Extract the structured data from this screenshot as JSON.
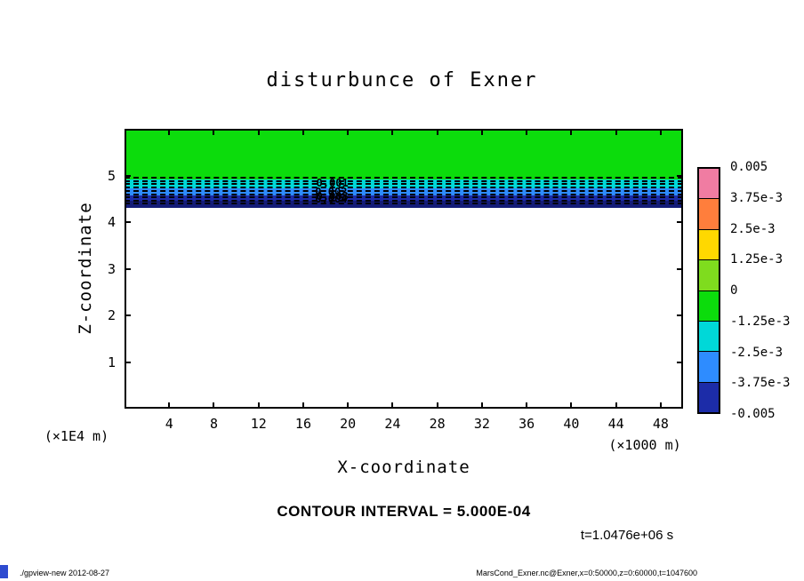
{
  "title": "disturbunce of Exner",
  "axes": {
    "x_label": "X-coordinate",
    "x_unit": "(×1000 m)",
    "y_label": "Z-coordinate",
    "y_unit": "(×1E4 m)",
    "x_ticks": [
      4,
      8,
      12,
      16,
      20,
      24,
      28,
      32,
      36,
      40,
      44,
      48
    ],
    "y_ticks": [
      1,
      2,
      3,
      4,
      5
    ]
  },
  "colorbar": {
    "labels": [
      "0.005",
      "3.75e-3",
      "2.5e-3",
      "1.25e-3",
      "0",
      "-1.25e-3",
      "-2.5e-3",
      "-3.75e-3",
      "-0.005"
    ],
    "segment_colors": [
      "#F07CA2",
      "#FF7E3C",
      "#FFD800",
      "#7FDC1E",
      "#0CDC0C",
      "#00D8D8",
      "#2E8CFF",
      "#1C2CA8"
    ]
  },
  "annotations": {
    "contour_interval": "CONTOUR INTERVAL = 5.000E-04",
    "time": "t=1.0476e+06 s",
    "contour_labels": [
      {
        "text": "0.001",
        "x": 18.6,
        "z": 4.83
      },
      {
        "text": "0.002",
        "x": 18.5,
        "z": 4.65
      },
      {
        "text": "0.003",
        "x": 18.6,
        "z": 4.56
      },
      {
        "text": "0.004",
        "x": 18.5,
        "z": 4.49
      }
    ]
  },
  "footer": {
    "left": "./gpview-new  2012-08-27",
    "right": "MarsCond_Exner.nc@Exner,x=0:50000,z=0:60000,t=1047600"
  },
  "chart_data": {
    "type": "heatmap",
    "title": "disturbunce of Exner",
    "xlabel": "X-coordinate (×1000 m)",
    "ylabel": "Z-coordinate (×1E4 m)",
    "x_range": [
      0,
      50
    ],
    "z_range": [
      0,
      6
    ],
    "grid": false,
    "legend_position": "right-colorbar",
    "contour_interval": 0.0005,
    "time_s": 1047600,
    "levels": [
      0.005,
      0.00375,
      0.0025,
      0.00125,
      0,
      -0.00125,
      -0.0025,
      -0.00375,
      -0.005
    ],
    "bands": [
      {
        "z_top": 6.0,
        "z_bottom": 4.92,
        "value_range": "0 to -1.25e-3",
        "color": "#0CDC0C"
      },
      {
        "z_top": 4.92,
        "z_bottom": 4.72,
        "value_range": "-1.25e-3 to -2.5e-3",
        "color": "#00D8D8"
      },
      {
        "z_top": 4.72,
        "z_bottom": 4.57,
        "value_range": "-2.5e-3 to -3.75e-3",
        "color": "#2E8CFF"
      },
      {
        "z_top": 4.57,
        "z_bottom": 4.45,
        "value_range": "-3.75e-3 to -0.005",
        "color": "#1C2CA8"
      },
      {
        "z_top": 4.45,
        "z_bottom": 4.31,
        "value_range": "below -0.005",
        "color": "#141C78"
      },
      {
        "z_top": 4.31,
        "z_bottom": 0.0,
        "value_range": "undefined (blank)",
        "color": "#FFFFFF"
      }
    ],
    "dashed_contours_z": [
      4.95,
      4.88,
      4.81,
      4.74,
      4.67,
      4.6,
      4.53,
      4.46,
      4.4
    ]
  }
}
